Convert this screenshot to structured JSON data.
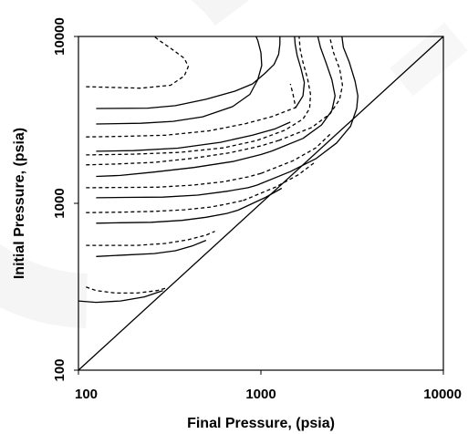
{
  "chart_data": {
    "type": "line",
    "title": "",
    "xlabel": "Final Pressure, (psia)",
    "ylabel": "Initial Pressure, (psia)",
    "xscale": "log",
    "yscale": "log",
    "xlim": [
      100,
      10000
    ],
    "ylim": [
      100,
      10000
    ],
    "xticks": [
      "100",
      "1000",
      "10000"
    ],
    "yticks": [
      "100",
      "1000",
      "10000"
    ],
    "grid": false,
    "legend": "none",
    "series": [
      {
        "style": "solid",
        "points": [
          [
            100,
            260
          ],
          [
            125,
            255
          ],
          [
            170,
            260
          ],
          [
            230,
            275
          ],
          [
            290,
            300
          ]
        ]
      },
      {
        "style": "dashed",
        "points": [
          [
            110,
            315
          ],
          [
            125,
            300
          ],
          [
            160,
            290
          ],
          [
            210,
            290
          ],
          [
            270,
            300
          ],
          [
            300,
            310
          ]
        ]
      },
      {
        "style": "solid",
        "points": [
          [
            125,
            480
          ],
          [
            180,
            490
          ],
          [
            260,
            500
          ],
          [
            340,
            520
          ],
          [
            420,
            555
          ],
          [
            500,
            600
          ]
        ]
      },
      {
        "style": "dashed",
        "points": [
          [
            110,
            560
          ],
          [
            140,
            560
          ],
          [
            210,
            560
          ],
          [
            300,
            575
          ],
          [
            400,
            605
          ],
          [
            500,
            645
          ],
          [
            560,
            680
          ]
        ]
      },
      {
        "style": "solid",
        "points": [
          [
            125,
            760
          ],
          [
            170,
            765
          ],
          [
            250,
            770
          ],
          [
            370,
            790
          ],
          [
            500,
            825
          ],
          [
            650,
            870
          ],
          [
            750,
            910
          ]
        ]
      },
      {
        "style": "dashed",
        "points": [
          [
            110,
            880
          ],
          [
            170,
            885
          ],
          [
            260,
            895
          ],
          [
            380,
            915
          ],
          [
            530,
            950
          ],
          [
            680,
            1000
          ],
          [
            800,
            1040
          ]
        ]
      },
      {
        "style": "solid",
        "points": [
          [
            125,
            1080
          ],
          [
            180,
            1085
          ],
          [
            290,
            1090
          ],
          [
            450,
            1120
          ],
          [
            650,
            1180
          ],
          [
            850,
            1240
          ],
          [
            950,
            1285
          ]
        ]
      },
      {
        "style": "dashed",
        "points": [
          [
            110,
            1240
          ],
          [
            170,
            1245
          ],
          [
            270,
            1250
          ],
          [
            420,
            1285
          ],
          [
            620,
            1345
          ],
          [
            850,
            1440
          ],
          [
            1000,
            1510
          ]
        ]
      },
      {
        "style": "solid",
        "points": [
          [
            125,
            1450
          ],
          [
            170,
            1470
          ],
          [
            260,
            1540
          ],
          [
            430,
            1640
          ],
          [
            700,
            1780
          ],
          [
            1000,
            1960
          ],
          [
            1150,
            2060
          ]
        ]
      },
      {
        "style": "dashed",
        "points": [
          [
            110,
            1700
          ],
          [
            160,
            1720
          ],
          [
            260,
            1760
          ],
          [
            420,
            1860
          ],
          [
            680,
            2010
          ],
          [
            1000,
            2210
          ],
          [
            1250,
            2380
          ]
        ]
      },
      {
        "style": "solid",
        "points": [
          [
            125,
            2050
          ],
          [
            200,
            2070
          ],
          [
            350,
            2140
          ],
          [
            600,
            2320
          ],
          [
            900,
            2560
          ],
          [
            1200,
            2800
          ],
          [
            1450,
            3070
          ]
        ]
      },
      {
        "style": "dashed",
        "points": [
          [
            110,
            2500
          ],
          [
            180,
            2520
          ],
          [
            300,
            2560
          ],
          [
            520,
            2720
          ],
          [
            820,
            3000
          ],
          [
            1150,
            3310
          ],
          [
            1450,
            3650
          ],
          [
            1550,
            3750
          ],
          [
            1500,
            4500
          ],
          [
            1450,
            5200
          ]
        ]
      },
      {
        "style": "solid",
        "points": [
          [
            125,
            3700
          ],
          [
            240,
            3720
          ],
          [
            340,
            3850
          ],
          [
            500,
            4200
          ],
          [
            720,
            4700
          ],
          [
            900,
            5200
          ],
          [
            1050,
            6000
          ],
          [
            1180,
            6800
          ],
          [
            1250,
            7800
          ],
          [
            1270,
            9000
          ],
          [
            1270,
            10000
          ]
        ]
      },
      {
        "style": "dashed",
        "points": [
          [
            110,
            5000
          ],
          [
            220,
            4900
          ],
          [
            320,
            5100
          ],
          [
            380,
            5800
          ],
          [
            400,
            6600
          ],
          [
            380,
            7400
          ],
          [
            330,
            8300
          ],
          [
            280,
            9400
          ],
          [
            260,
            10000
          ]
        ]
      },
      {
        "style": "solid",
        "points": [
          [
            125,
            2990
          ],
          [
            220,
            3020
          ],
          [
            330,
            3100
          ],
          [
            480,
            3300
          ],
          [
            700,
            3800
          ],
          [
            870,
            4500
          ],
          [
            960,
            5500
          ],
          [
            1010,
            6700
          ],
          [
            1000,
            8000
          ],
          [
            960,
            9500
          ],
          [
            940,
            10000
          ]
        ]
      },
      {
        "style": "dashed",
        "points": [
          [
            110,
            1950
          ],
          [
            200,
            1970
          ],
          [
            360,
            2020
          ],
          [
            620,
            2150
          ],
          [
            950,
            2380
          ],
          [
            1350,
            2740
          ],
          [
            1700,
            3200
          ],
          [
            1850,
            3700
          ],
          [
            1870,
            4500
          ],
          [
            1800,
            5600
          ],
          [
            1700,
            7000
          ],
          [
            1640,
            8400
          ],
          [
            1620,
            10000
          ]
        ]
      },
      {
        "style": "solid",
        "points": [
          [
            1550,
            3750
          ],
          [
            1700,
            4400
          ],
          [
            1730,
            5300
          ],
          [
            1660,
            6400
          ],
          [
            1580,
            7700
          ],
          [
            1540,
            9000
          ],
          [
            1530,
            10000
          ]
        ]
      },
      {
        "style": "solid",
        "points": [
          [
            1150,
            2060
          ],
          [
            1700,
            2450
          ],
          [
            2150,
            2950
          ],
          [
            2450,
            3600
          ],
          [
            2550,
            4400
          ],
          [
            2450,
            5500
          ],
          [
            2270,
            7000
          ],
          [
            2120,
            8600
          ],
          [
            2050,
            10000
          ]
        ]
      },
      {
        "style": "dashed",
        "points": [
          [
            1250,
            2380
          ],
          [
            1900,
            2850
          ],
          [
            2400,
            3450
          ],
          [
            2700,
            4200
          ],
          [
            2800,
            5100
          ],
          [
            2700,
            6400
          ],
          [
            2500,
            8000
          ],
          [
            2380,
            10000
          ]
        ]
      },
      {
        "style": "solid",
        "points": [
          [
            950,
            1285
          ],
          [
            1450,
            1550
          ],
          [
            2000,
            1850
          ],
          [
            2600,
            2300
          ],
          [
            3100,
            2900
          ],
          [
            3350,
            3700
          ],
          [
            3400,
            4400
          ],
          [
            3280,
            5400
          ],
          [
            3050,
            7000
          ],
          [
            2830,
            8600
          ],
          [
            2780,
            10000
          ]
        ]
      },
      {
        "style": "dashed",
        "points": [
          [
            800,
            1040
          ],
          [
            1200,
            1250
          ],
          [
            1600,
            1480
          ],
          [
            2000,
            1780
          ]
        ]
      },
      {
        "style": "dashed",
        "points": [
          [
            1000,
            1510
          ],
          [
            1500,
            1800
          ],
          [
            2000,
            2150
          ],
          [
            2400,
            2600
          ]
        ]
      },
      {
        "style": "solid",
        "points": [
          [
            750,
            910
          ],
          [
            1050,
            1080
          ],
          [
            1300,
            1230
          ]
        ]
      },
      {
        "style": "solid",
        "points": [
          [
            100,
            100
          ],
          [
            10000,
            10000
          ]
        ]
      }
    ]
  }
}
